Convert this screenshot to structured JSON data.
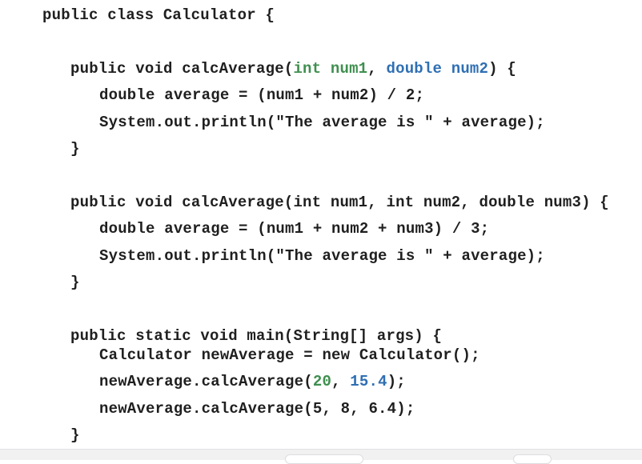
{
  "code": {
    "class_line": "public class Calculator {",
    "method1": {
      "signature_prefix": "public void calcAverage(",
      "param1": "int num1",
      "separator": ", ",
      "param2": "double num2",
      "signature_suffix": ") {",
      "body_line1": "double average = (num1 + num2) / 2;",
      "body_line2": "System.out.println(\"The average is \" + average);",
      "close": "}"
    },
    "method2": {
      "signature": "public void calcAverage(int num1, int num2, double num3) {",
      "body_line1": "double average = (num1 + num2 + num3) / 3;",
      "body_line2": "System.out.println(\"The average is \" + average);",
      "close": "}"
    },
    "main": {
      "signature": "public static void main(String[] args) {",
      "line1": "Calculator newAverage = new Calculator();",
      "line2_prefix": "newAverage.calcAverage(",
      "line2_arg1": "20",
      "line2_sep": ", ",
      "line2_arg2": "15.4",
      "line2_suffix": ");",
      "line3": "newAverage.calcAverage(5, 8, 6.4);",
      "close": "}"
    }
  },
  "colors": {
    "text": "#1f1f1f",
    "green": "#3f8f4f",
    "blue": "#2f6fb3",
    "background": "#ffffff"
  }
}
